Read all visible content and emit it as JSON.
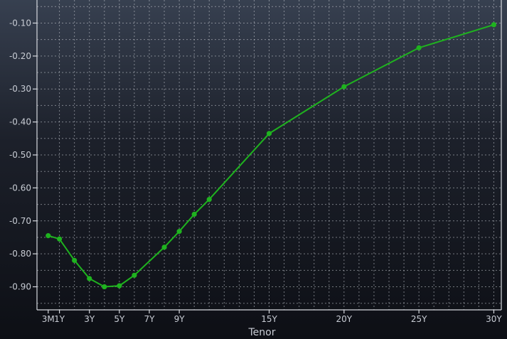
{
  "chart_data": {
    "type": "line",
    "title": "",
    "xlabel": "Tenor",
    "ylabel": "",
    "x_tick_labels": [
      "3M",
      "1Y",
      "3Y",
      "5Y",
      "7Y",
      "9Y",
      "15Y",
      "20Y",
      "25Y",
      "30Y"
    ],
    "x_tick_years": [
      0.25,
      1,
      3,
      5,
      7,
      9,
      15,
      20,
      25,
      30
    ],
    "y_tick_labels": [
      "-0.10",
      "-0.20",
      "-0.30",
      "-0.40",
      "-0.50",
      "-0.60",
      "-0.70",
      "-0.80",
      "-0.90"
    ],
    "y_tick_values": [
      -0.1,
      -0.2,
      -0.3,
      -0.4,
      -0.5,
      -0.6,
      -0.7,
      -0.8,
      -0.9
    ],
    "ylim": [
      -0.97,
      -0.03
    ],
    "xlim": [
      -0.5,
      30.5
    ],
    "grid": true,
    "legend": "none",
    "series": [
      {
        "color": "#1fb31f",
        "x": [
          0.25,
          1,
          2,
          3,
          4,
          5,
          6,
          8,
          9,
          10,
          11,
          15,
          20,
          25,
          30
        ],
        "y": [
          -0.745,
          -0.755,
          -0.82,
          -0.875,
          -0.9,
          -0.897,
          -0.865,
          -0.78,
          -0.732,
          -0.68,
          -0.635,
          -0.435,
          -0.293,
          -0.175,
          -0.105
        ]
      }
    ]
  }
}
